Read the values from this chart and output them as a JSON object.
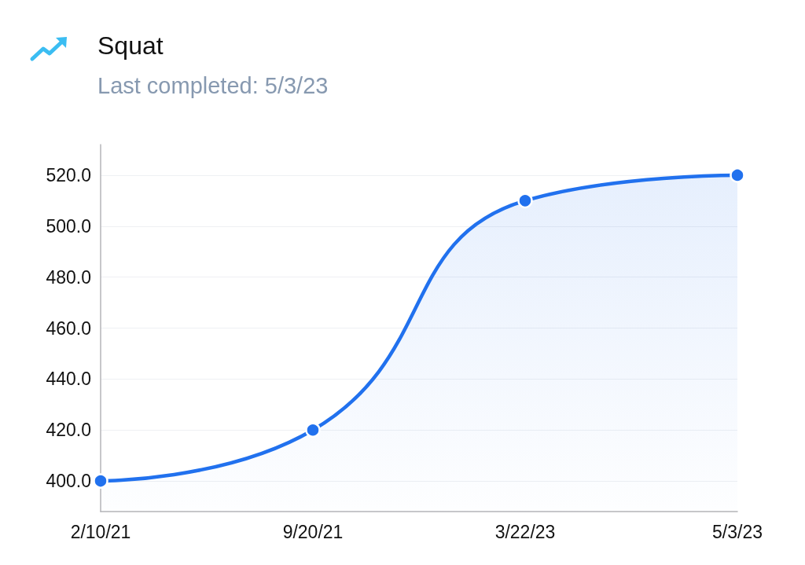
{
  "chart_data": {
    "type": "area",
    "title": "Squat",
    "subtitle": "Last completed: 5/3/23",
    "categories": [
      "2/10/21",
      "9/20/21",
      "3/22/23",
      "5/3/23"
    ],
    "values": [
      400,
      420,
      510,
      520
    ],
    "color": "#2171ee",
    "ylim": [
      388,
      532
    ],
    "yticks": [
      {
        "value": 400,
        "label": "400.0"
      },
      {
        "value": 420,
        "label": "420.0"
      },
      {
        "value": 440,
        "label": "440.0"
      },
      {
        "value": 460,
        "label": "460.0"
      },
      {
        "value": 480,
        "label": "480.0"
      },
      {
        "value": 500,
        "label": "500.0"
      },
      {
        "value": 520,
        "label": "520.0"
      }
    ],
    "grid": "y",
    "marker": "circle"
  }
}
